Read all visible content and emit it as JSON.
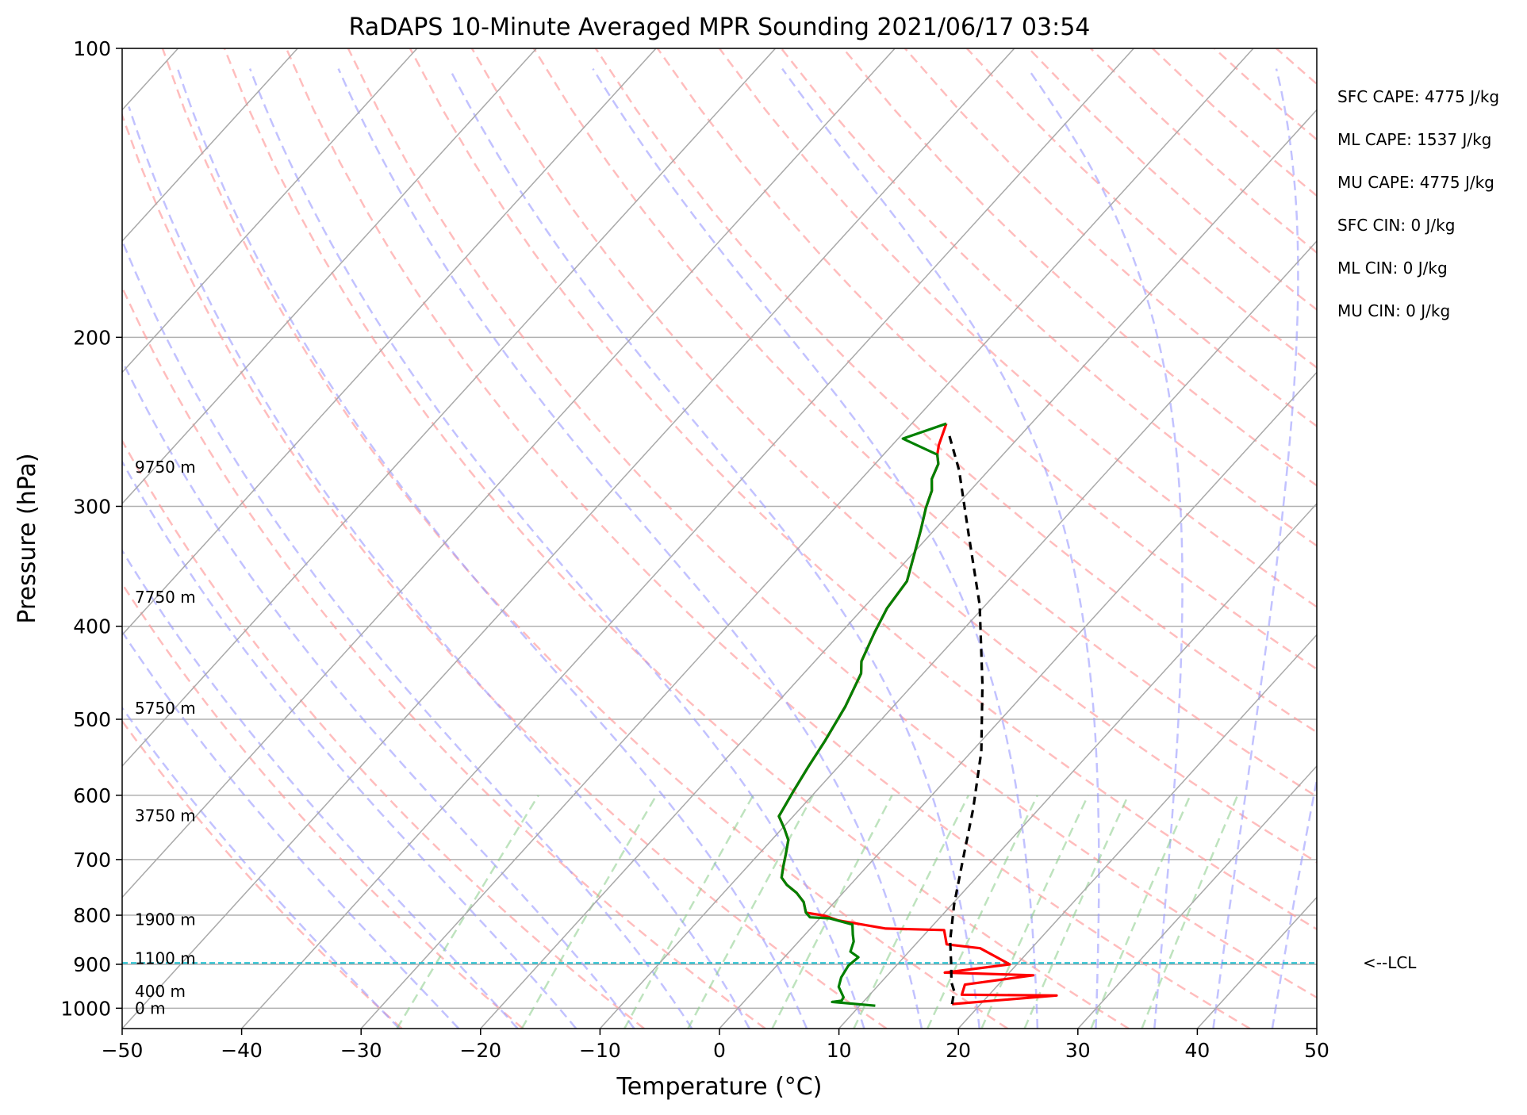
{
  "chart_data": {
    "type": "line",
    "title": "RaDAPS 10-Minute Averaged MPR Sounding 2021/06/17 03:54",
    "xlabel": "Temperature (°C)",
    "ylabel": "Pressure (hPa)",
    "xlim": [
      -50,
      50
    ],
    "ylim": [
      1050,
      100
    ],
    "y_scale": "log",
    "grid": true,
    "x_ticks": [
      -50,
      -40,
      -30,
      -20,
      -10,
      0,
      10,
      20,
      30,
      40,
      50
    ],
    "x_tick_labels": [
      "−50",
      "−40",
      "−30",
      "−20",
      "−10",
      "0",
      "10",
      "20",
      "30",
      "40",
      "50"
    ],
    "y_ticks": [
      1000,
      900,
      800,
      700,
      600,
      500,
      400,
      300,
      200,
      100
    ],
    "y_tick_labels": [
      "1000",
      "900",
      "800",
      "700",
      "600",
      "500",
      "400",
      "300",
      "200",
      "100"
    ],
    "series": [
      {
        "role": "temperature",
        "color": "#ff0000",
        "x": [
          17.6,
          25.7,
          17.7,
          17.2,
          22.2,
          14.6,
          19.4,
          15.7,
          12.6,
          11.3,
          6.3,
          1.7,
          0.2,
          -1.6,
          -2.6,
          -3.9,
          -5.3,
          -6.3,
          -7.0,
          -7.7,
          -8.6,
          -9.8,
          -11.2,
          -11.9,
          -12.5,
          -13.1,
          -14.0,
          -15.2,
          -16.1,
          -17.2,
          -18.0,
          -18.4,
          -19.8,
          -21.1,
          -22.4,
          -23.2,
          -24.1,
          -24.7,
          -25.5,
          -26.1,
          -27.1
        ],
        "y": [
          990,
          970,
          968,
          945,
          924,
          918,
          900,
          866,
          858,
          829,
          826,
          810,
          801,
          795,
          775,
          758,
          744,
          731,
          712,
          692,
          668,
          650,
          631,
          594,
          561,
          526,
          485,
          448,
          435,
          406,
          383,
          359,
          337,
          318,
          301,
          289,
          281,
          271,
          265,
          259,
          246
        ]
      },
      {
        "role": "dewpoint",
        "color": "#008000",
        "x": [
          11.3,
          7.4,
          8.1,
          8.0,
          6.8,
          6.3,
          6.0,
          6.2,
          5.1,
          4.6,
          4.0,
          3.2,
          0.8,
          -0.9,
          -1.6,
          -2.6,
          -3.9,
          -5.3,
          -6.3,
          -7.0,
          -7.7,
          -8.6,
          -9.8,
          -11.2,
          -11.9,
          -12.5,
          -13.1,
          -14.0,
          -15.2,
          -16.1,
          -17.2,
          -18.0,
          -18.4,
          -19.8,
          -21.1,
          -22.4,
          -23.2,
          -24.1,
          -24.7,
          -25.5,
          -29.6,
          -27.1
        ],
        "y": [
          994,
          985,
          982,
          974,
          950,
          929,
          903,
          885,
          873,
          852,
          838,
          818,
          806,
          804,
          795,
          775,
          758,
          744,
          731,
          712,
          692,
          668,
          650,
          631,
          594,
          561,
          526,
          485,
          448,
          435,
          406,
          383,
          359,
          337,
          318,
          301,
          289,
          281,
          271,
          265,
          255,
          246
        ]
      },
      {
        "role": "parcel",
        "color": "#000000",
        "dashed": true,
        "x": [
          17.6,
          16.8,
          15.9,
          14.5,
          12.6,
          10.2,
          7.5,
          4.5,
          0.8,
          -4.2,
          -10.5,
          -16.9,
          -22.5,
          -26.3
        ],
        "y": [
          990,
          960,
          940,
          900,
          850,
          780,
          700,
          620,
          540,
          460,
          380,
          320,
          275,
          251
        ]
      }
    ],
    "height_labels": [
      {
        "text": "0 m",
        "p": 1000
      },
      {
        "text": "400 m",
        "p": 960
      },
      {
        "text": "1100 m",
        "p": 887
      },
      {
        "text": "1900 m",
        "p": 808
      },
      {
        "text": "3750 m",
        "p": 630
      },
      {
        "text": "5750 m",
        "p": 487
      },
      {
        "text": "7750 m",
        "p": 373
      },
      {
        "text": "9750 m",
        "p": 273
      }
    ],
    "lcl": {
      "label": "<--LCL",
      "p": 897
    },
    "stats": [
      "SFC CAPE: 4775 J/kg",
      "ML CAPE: 1537 J/kg",
      "MU CAPE: 4775 J/kg",
      "SFC CIN: 0 J/kg",
      "ML CIN: 0 J/kg",
      "MU CIN: 0 J/kg"
    ],
    "colors": {
      "isotherms": "#a9a9a9",
      "dry_adiabats": "#ff9999",
      "moist_adiabats": "#9999ff",
      "mixing_ratio": "#88cc88",
      "lcl_line": "#17becf"
    }
  }
}
